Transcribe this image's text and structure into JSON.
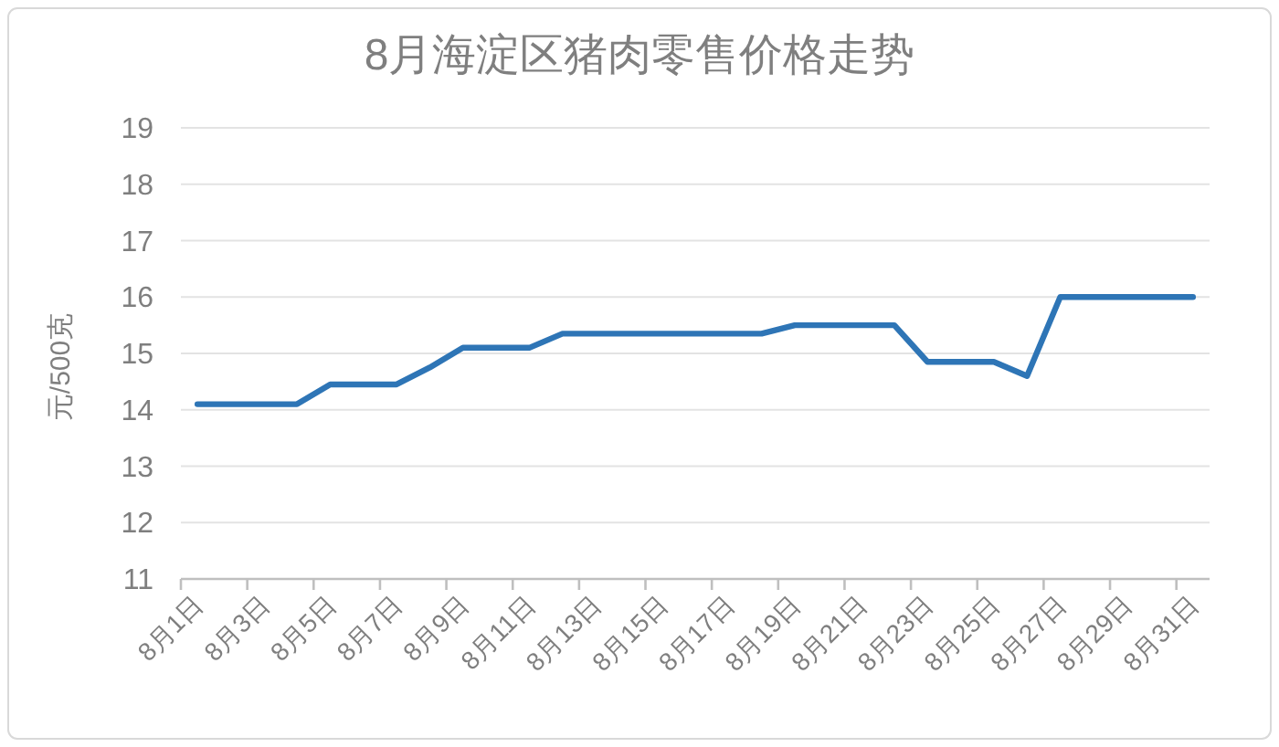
{
  "chart_data": {
    "type": "line",
    "title": "8月海淀区猪肉零售价格走势",
    "ylabel": "元/500克",
    "categories": [
      "8月1日",
      null,
      "8月3日",
      null,
      "8月5日",
      null,
      "8月7日",
      null,
      "8月9日",
      null,
      "8月11日",
      null,
      "8月13日",
      null,
      "8月15日",
      null,
      "8月17日",
      null,
      "8月19日",
      null,
      "8月21日",
      null,
      "8月23日",
      null,
      "8月25日",
      null,
      "8月27日",
      null,
      "8月29日",
      null,
      "8月31日"
    ],
    "values": [
      14.1,
      14.1,
      14.1,
      14.1,
      14.45,
      14.45,
      14.45,
      14.75,
      15.1,
      15.1,
      15.1,
      15.35,
      15.35,
      15.35,
      15.35,
      15.35,
      15.35,
      15.35,
      15.5,
      15.5,
      15.5,
      15.5,
      14.85,
      14.85,
      14.85,
      14.6,
      16,
      16,
      16,
      16,
      16
    ],
    "color": "#2e75b6",
    "ylim": [
      11,
      19
    ],
    "yticks": [
      11,
      12,
      13,
      14,
      15,
      16,
      17,
      18,
      19
    ],
    "grid": "y"
  }
}
